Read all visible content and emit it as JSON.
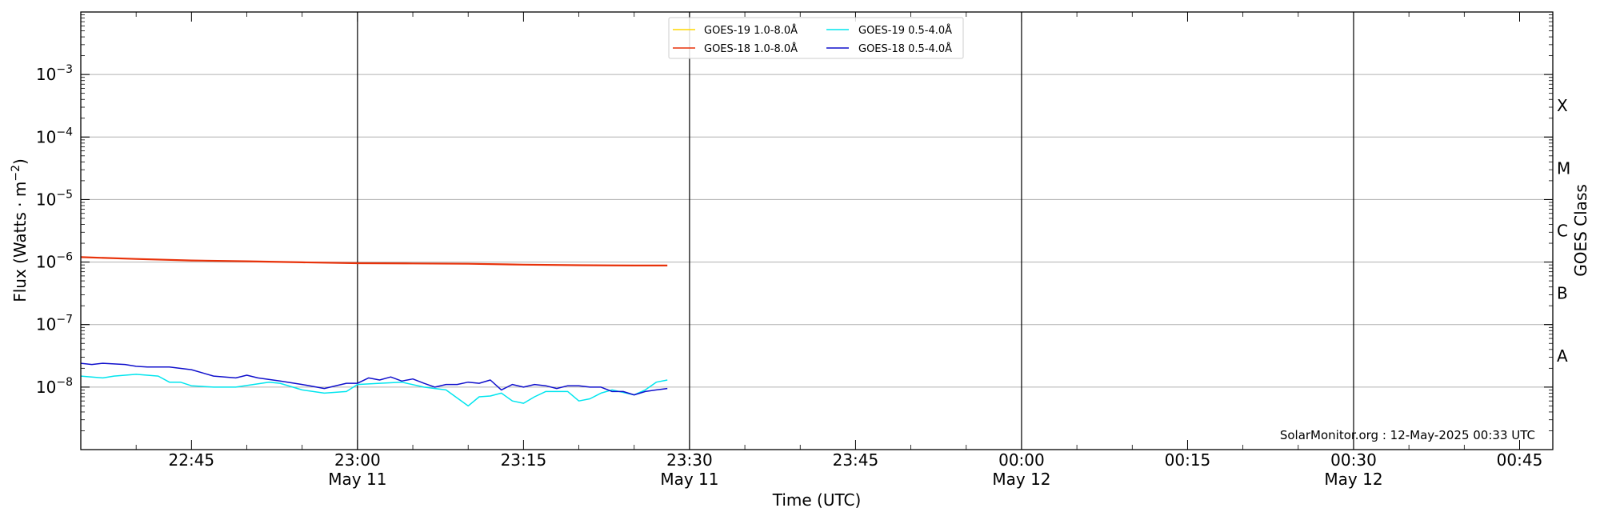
{
  "chart_data": {
    "type": "line",
    "xlabel": "Time (UTC)",
    "ylabel": "Flux (Watts · m",
    "ylabel_superscript": "−2",
    "ylabel_close": ")",
    "right_label": "GOES Class",
    "y_scale": "log",
    "ylim": [
      1e-09,
      0.01
    ],
    "xlim": [
      "22:35",
      "00:48"
    ],
    "x_ticks": [
      {
        "t": "22:45",
        "label": "22:45",
        "date": ""
      },
      {
        "t": "23:00",
        "label": "23:00",
        "date": "May 11"
      },
      {
        "t": "23:15",
        "label": "23:15",
        "date": ""
      },
      {
        "t": "23:30",
        "label": "23:30",
        "date": "May 11"
      },
      {
        "t": "23:45",
        "label": "23:45",
        "date": ""
      },
      {
        "t": "00:00",
        "label": "00:00",
        "date": "May 12"
      },
      {
        "t": "00:15",
        "label": "00:15",
        "date": ""
      },
      {
        "t": "00:30",
        "label": "00:30",
        "date": "May 12"
      },
      {
        "t": "00:45",
        "label": "00:45",
        "date": ""
      }
    ],
    "y_ticks": [
      {
        "exp": -8,
        "label": "10",
        "sup": "−8"
      },
      {
        "exp": -7,
        "label": "10",
        "sup": "−7"
      },
      {
        "exp": -6,
        "label": "10",
        "sup": "−6"
      },
      {
        "exp": -5,
        "label": "10",
        "sup": "−5"
      },
      {
        "exp": -4,
        "label": "10",
        "sup": "−4"
      },
      {
        "exp": -3,
        "label": "10",
        "sup": "−3"
      }
    ],
    "vertical_lines": [
      "23:00",
      "23:30",
      "00:00",
      "00:30"
    ],
    "grid": "horizontal",
    "goes_classes": [
      {
        "label": "A",
        "exp": -7.5
      },
      {
        "label": "B",
        "exp": -6.5
      },
      {
        "label": "C",
        "exp": -5.5
      },
      {
        "label": "M",
        "exp": -4.5
      },
      {
        "label": "X",
        "exp": -3.5
      }
    ],
    "legend_placement": "top-center",
    "series": [
      {
        "name": "GOES-19 1.0-8.0Å",
        "color": "#ffd700",
        "x": [],
        "y": []
      },
      {
        "name": "GOES-18 1.0-8.0Å",
        "color": "#e8320a",
        "x": [
          "22:35",
          "22:40",
          "22:45",
          "22:50",
          "22:55",
          "23:00",
          "23:05",
          "23:10",
          "23:15",
          "23:20",
          "23:25",
          "23:28"
        ],
        "y": [
          1.2e-06,
          1.12e-06,
          1.06e-06,
          1.03e-06,
          9.9e-07,
          9.6e-07,
          9.5e-07,
          9.4e-07,
          9.1e-07,
          8.9e-07,
          8.8e-07,
          8.8e-07
        ]
      },
      {
        "name": "GOES-19 0.5-4.0Å",
        "color": "#00e5ee",
        "x": [
          "22:35",
          "22:37",
          "22:38",
          "22:40",
          "22:42",
          "22:43",
          "22:44",
          "22:45",
          "22:47",
          "22:49",
          "22:52",
          "22:53",
          "22:55",
          "22:57",
          "22:59",
          "23:00",
          "23:02",
          "23:04",
          "23:06",
          "23:08",
          "23:10",
          "23:11",
          "23:12",
          "23:13",
          "23:14",
          "23:15",
          "23:16",
          "23:17",
          "23:19",
          "23:20",
          "23:21",
          "23:22",
          "23:23",
          "23:25",
          "23:26",
          "23:27",
          "23:28"
        ],
        "y": [
          1.5e-08,
          1.4e-08,
          1.5e-08,
          1.6e-08,
          1.5e-08,
          1.2e-08,
          1.2e-08,
          1.05e-08,
          1e-08,
          1e-08,
          1.2e-08,
          1.15e-08,
          9e-09,
          8e-09,
          8.5e-09,
          1.1e-08,
          1.15e-08,
          1.2e-08,
          1e-08,
          9e-09,
          5e-09,
          7e-09,
          7.2e-09,
          8e-09,
          6e-09,
          5.5e-09,
          7e-09,
          8.5e-09,
          8.5e-09,
          6e-09,
          6.5e-09,
          8e-09,
          9e-09,
          7.5e-09,
          9e-09,
          1.2e-08,
          1.3e-08
        ]
      },
      {
        "name": "GOES-18 0.5-4.0Å",
        "color": "#1010cc",
        "x": [
          "22:35",
          "22:36",
          "22:37",
          "22:38",
          "22:39",
          "22:40",
          "22:41",
          "22:43",
          "22:45",
          "22:47",
          "22:49",
          "22:50",
          "22:51",
          "22:53",
          "22:55",
          "22:57",
          "22:59",
          "23:00",
          "23:01",
          "23:02",
          "23:03",
          "23:04",
          "23:05",
          "23:06",
          "23:07",
          "23:08",
          "23:09",
          "23:10",
          "23:11",
          "23:12",
          "23:13",
          "23:14",
          "23:15",
          "23:16",
          "23:17",
          "23:18",
          "23:19",
          "23:20",
          "23:21",
          "23:22",
          "23:23",
          "23:24",
          "23:25",
          "23:26",
          "23:27",
          "23:28"
        ],
        "y": [
          2.4e-08,
          2.3e-08,
          2.4e-08,
          2.35e-08,
          2.3e-08,
          2.15e-08,
          2.1e-08,
          2.1e-08,
          1.9e-08,
          1.5e-08,
          1.4e-08,
          1.55e-08,
          1.4e-08,
          1.25e-08,
          1.1e-08,
          9.5e-09,
          1.15e-08,
          1.15e-08,
          1.4e-08,
          1.3e-08,
          1.45e-08,
          1.25e-08,
          1.35e-08,
          1.15e-08,
          1e-08,
          1.1e-08,
          1.1e-08,
          1.2e-08,
          1.15e-08,
          1.3e-08,
          9e-09,
          1.1e-08,
          1e-08,
          1.1e-08,
          1.05e-08,
          9.5e-09,
          1.05e-08,
          1.05e-08,
          1e-08,
          1e-08,
          8.5e-09,
          8.5e-09,
          7.5e-09,
          8.5e-09,
          9e-09,
          9.5e-09
        ]
      }
    ],
    "credit": "SolarMonitor.org : 12-May-2025 00:33 UTC"
  }
}
